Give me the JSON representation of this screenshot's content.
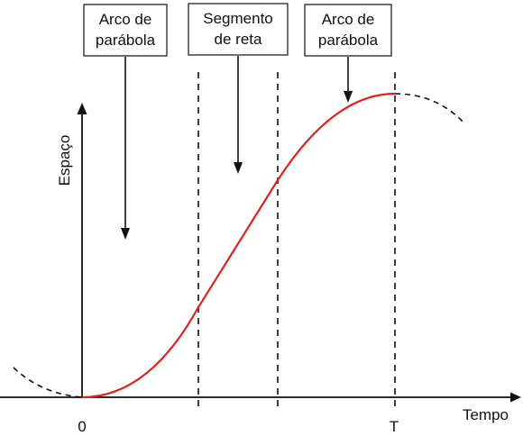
{
  "annotations": [
    {
      "line1": "Arco de",
      "line2": "parábola"
    },
    {
      "line1": "Segmento",
      "line2": "de reta"
    },
    {
      "line1": "Arco de",
      "line2": "parábola"
    }
  ],
  "axes": {
    "x_label": "Tempo",
    "y_label": "Espaço",
    "x_tick_origin": "0",
    "x_tick_end": "T"
  },
  "colors": {
    "curve": "#e0201e",
    "axes": "#111111",
    "dashed": "#111111"
  }
}
